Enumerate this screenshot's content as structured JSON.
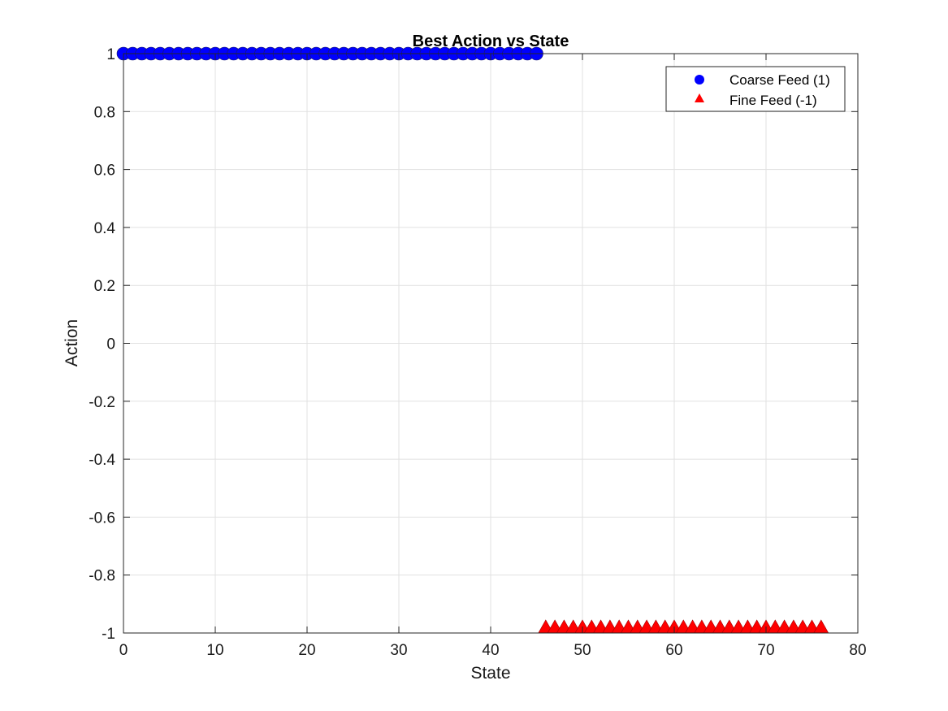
{
  "chart_data": {
    "type": "scatter",
    "title": "Best Action vs State",
    "xlabel": "State",
    "ylabel": "Action",
    "xlim": [
      0,
      80
    ],
    "ylim": [
      -1,
      1
    ],
    "xticks": [
      "0",
      "10",
      "20",
      "30",
      "40",
      "50",
      "60",
      "70",
      "80"
    ],
    "yticks": [
      "-1",
      "-0.8",
      "-0.6",
      "-0.4",
      "-0.2",
      "0",
      "0.2",
      "0.4",
      "0.6",
      "0.8",
      "1"
    ],
    "grid": true,
    "legend_position": "top-right",
    "series": [
      {
        "name": "Coarse Feed (1)",
        "marker": "circle",
        "color": "#0000ff",
        "x": [
          0,
          1,
          2,
          3,
          4,
          5,
          6,
          7,
          8,
          9,
          10,
          11,
          12,
          13,
          14,
          15,
          16,
          17,
          18,
          19,
          20,
          21,
          22,
          23,
          24,
          25,
          26,
          27,
          28,
          29,
          30,
          31,
          32,
          33,
          34,
          35,
          36,
          37,
          38,
          39,
          40,
          41,
          42,
          43,
          44,
          45
        ],
        "y": [
          1,
          1,
          1,
          1,
          1,
          1,
          1,
          1,
          1,
          1,
          1,
          1,
          1,
          1,
          1,
          1,
          1,
          1,
          1,
          1,
          1,
          1,
          1,
          1,
          1,
          1,
          1,
          1,
          1,
          1,
          1,
          1,
          1,
          1,
          1,
          1,
          1,
          1,
          1,
          1,
          1,
          1,
          1,
          1,
          1,
          1
        ]
      },
      {
        "name": "Fine Feed (-1)",
        "marker": "triangle",
        "color": "#ff0000",
        "x": [
          46,
          47,
          48,
          49,
          50,
          51,
          52,
          53,
          54,
          55,
          56,
          57,
          58,
          59,
          60,
          61,
          62,
          63,
          64,
          65,
          66,
          67,
          68,
          69,
          70,
          71,
          72,
          73,
          74,
          75,
          76
        ],
        "y": [
          -1,
          -1,
          -1,
          -1,
          -1,
          -1,
          -1,
          -1,
          -1,
          -1,
          -1,
          -1,
          -1,
          -1,
          -1,
          -1,
          -1,
          -1,
          -1,
          -1,
          -1,
          -1,
          -1,
          -1,
          -1,
          -1,
          -1,
          -1,
          -1,
          -1,
          -1
        ]
      }
    ]
  }
}
